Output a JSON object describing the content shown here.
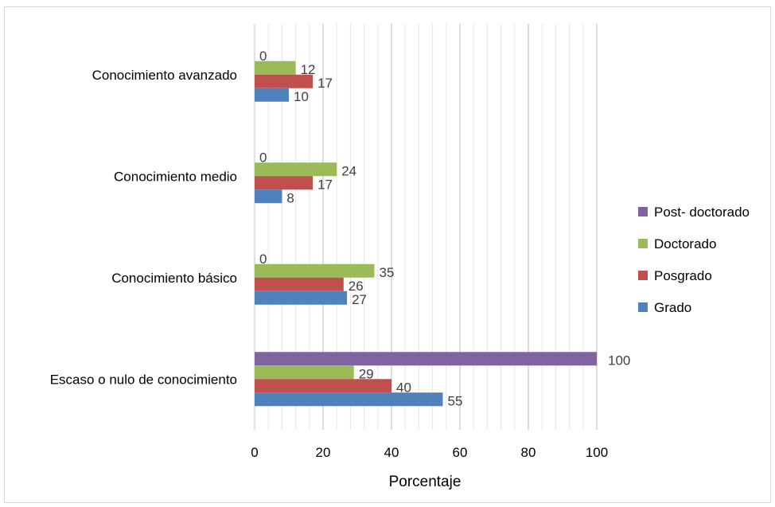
{
  "chart_data": {
    "type": "bar",
    "orientation": "horizontal",
    "title": "",
    "xlabel": "Porcentaje",
    "ylabel": "",
    "xlim": [
      0,
      100
    ],
    "xticks": [
      "0",
      "20",
      "40",
      "60",
      "80",
      "100"
    ],
    "grid": true,
    "legend_position": "right",
    "categories": [
      "Conocimiento avanzado",
      "Conocimiento medio",
      "Conocimiento básico",
      "Escaso o nulo  de conocimiento"
    ],
    "series": [
      {
        "name": "Post- doctorado",
        "color": "#8064a2",
        "values": [
          0,
          0,
          0,
          100
        ]
      },
      {
        "name": "Doctorado",
        "color": "#9bbb59",
        "values": [
          12,
          24,
          35,
          29
        ]
      },
      {
        "name": "Posgrado",
        "color": "#c0504d",
        "values": [
          17,
          17,
          26,
          40
        ]
      },
      {
        "name": "Grado",
        "color": "#4f81bd",
        "values": [
          10,
          8,
          27,
          55
        ]
      }
    ]
  }
}
